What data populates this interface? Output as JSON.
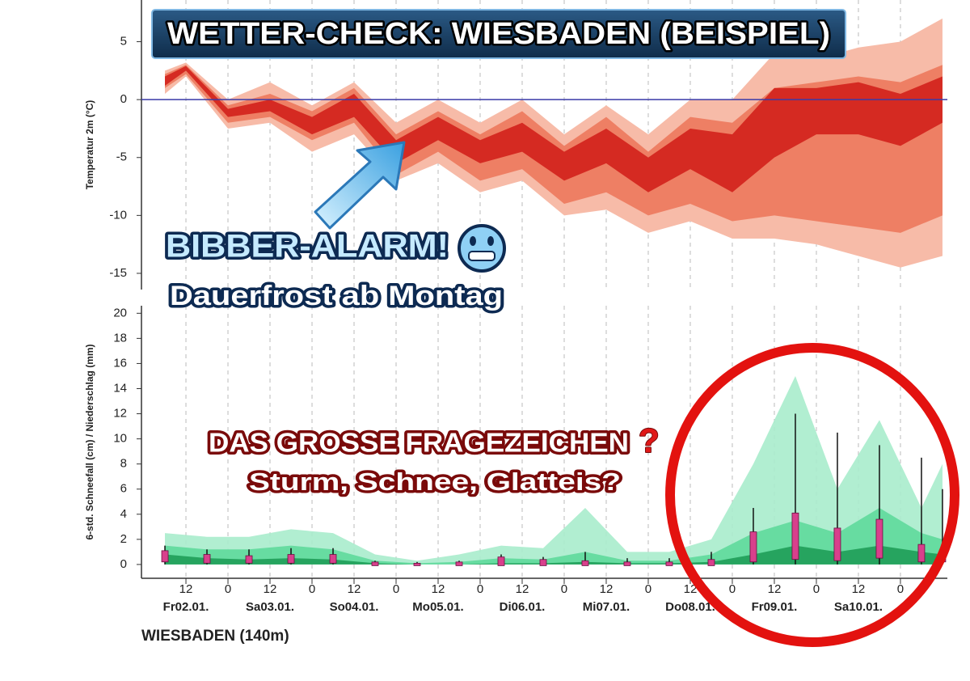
{
  "header": {
    "title": "WETTER-CHECK: WIESBADEN (BEISPIEL)"
  },
  "annotations": {
    "alarm": "BIBBER-ALARM!",
    "alarm_sub": "Dauerfrost ab Montag",
    "question": "DAS GROSSE FRAGEZEICHEN",
    "question_mark": "?",
    "question_sub": "Sturm, Schnee, Glatteis?"
  },
  "location": "WIESBADEN (140m)",
  "chart_data": [
    {
      "type": "band",
      "y_label": "Temperatur 2m (°C)",
      "x": [
        6,
        12,
        24,
        36,
        48,
        60,
        72,
        84,
        96,
        108,
        120,
        132,
        144,
        156,
        168,
        180,
        192,
        204,
        216,
        228
      ],
      "xlim": [
        -0.7,
        229.4
      ],
      "ylim": [
        -16.4,
        8.6
      ],
      "yticks": [
        5,
        0,
        -5,
        -10,
        -15
      ],
      "reference_line": 0,
      "reference_color": "#3a3aa8",
      "series": [
        {
          "color": "#f7bba8",
          "low": [
            0.5,
            2,
            -2.5,
            -2,
            -4.5,
            -3,
            -7,
            -5.5,
            -8,
            -7,
            -10,
            -9.5,
            -11.5,
            -10.5,
            -12,
            -12,
            -12.5,
            -13.5,
            -14.5,
            -13.5
          ],
          "high": [
            2.5,
            3.2,
            0,
            1.5,
            -0.5,
            1.5,
            -2,
            0,
            -2,
            0,
            -3,
            -0.5,
            -3,
            0,
            0,
            4,
            3.5,
            4.5,
            5,
            7
          ]
        },
        {
          "color": "#ee7f64",
          "low": [
            1,
            2.2,
            -2,
            -1.5,
            -3.5,
            -2,
            -6.5,
            -4.5,
            -7,
            -6,
            -9,
            -8,
            -10,
            -9,
            -10.5,
            -10,
            -10.5,
            -11,
            -11.5,
            -10
          ],
          "high": [
            2.2,
            3,
            -0.5,
            0.5,
            -1,
            1,
            -3,
            -1,
            -3,
            -1,
            -4,
            -1.5,
            -4.5,
            -1.5,
            -2,
            1,
            1.5,
            2,
            1.5,
            3
          ]
        },
        {
          "color": "#d52a22",
          "low": [
            1.2,
            2.5,
            -1.5,
            -1,
            -3,
            -1.5,
            -5.5,
            -3.5,
            -5.5,
            -4.5,
            -7,
            -5.5,
            -8,
            -6,
            -8,
            -5,
            -3,
            -3,
            -4,
            -2
          ],
          "high": [
            2,
            2.9,
            -0.8,
            0,
            -1.5,
            0.5,
            -3.5,
            -1.5,
            -3.5,
            -2,
            -4.5,
            -2.5,
            -5,
            -2.5,
            -3,
            1,
            1,
            1.5,
            0.5,
            2
          ]
        }
      ]
    },
    {
      "type": "area-box",
      "y_label": "6-std. Schneefall (cm) / Niederschlag (mm)",
      "x": [
        6,
        18,
        30,
        42,
        54,
        66,
        78,
        90,
        102,
        114,
        126,
        138,
        150,
        162,
        174,
        186,
        198,
        210,
        222,
        228
      ],
      "xlim": [
        -0.7,
        229.4
      ],
      "ylim": [
        -1.1,
        20.6
      ],
      "yticks": [
        0,
        2,
        4,
        6,
        8,
        10,
        12,
        14,
        16,
        18,
        20
      ],
      "grid": "x",
      "xticks": [
        {
          "value": 12,
          "label": "12"
        },
        {
          "value": 24,
          "label": "0"
        },
        {
          "value": 36,
          "label": "12"
        },
        {
          "value": 48,
          "label": "0"
        },
        {
          "value": 60,
          "label": "12"
        },
        {
          "value": 72,
          "label": "0"
        },
        {
          "value": 84,
          "label": "12"
        },
        {
          "value": 96,
          "label": "0"
        },
        {
          "value": 108,
          "label": "12"
        },
        {
          "value": 120,
          "label": "0"
        },
        {
          "value": 132,
          "label": "12"
        },
        {
          "value": 144,
          "label": "0"
        },
        {
          "value": 156,
          "label": "12"
        },
        {
          "value": 168,
          "label": "0"
        },
        {
          "value": 180,
          "label": "12"
        },
        {
          "value": 192,
          "label": "0"
        },
        {
          "value": 204,
          "label": "12"
        },
        {
          "value": 216,
          "label": "0"
        }
      ],
      "x_day_labels": [
        {
          "value": 12,
          "label": "Fr02.01."
        },
        {
          "value": 36,
          "label": "Sa03.01."
        },
        {
          "value": 60,
          "label": "So04.01."
        },
        {
          "value": 84,
          "label": "Mo05.01."
        },
        {
          "value": 108,
          "label": "Di06.01."
        },
        {
          "value": 132,
          "label": "Mi07.01."
        },
        {
          "value": 156,
          "label": "Do08.01."
        },
        {
          "value": 180,
          "label": "Fr09.01."
        },
        {
          "value": 204,
          "label": "Sa10.01."
        }
      ],
      "series": [
        {
          "color": "#a8eccc",
          "values": [
            2.5,
            2.2,
            2.2,
            2.8,
            2.5,
            0.8,
            0.3,
            0.8,
            1.5,
            1.3,
            4.5,
            1,
            1,
            2,
            8,
            15,
            6,
            11.5,
            4.5,
            8
          ]
        },
        {
          "color": "#5fd99b",
          "values": [
            1.5,
            1.2,
            1.2,
            1.5,
            1.2,
            0.3,
            0.1,
            0.2,
            0.5,
            0.4,
            1,
            0.3,
            0.3,
            0.8,
            2.5,
            3.5,
            2.5,
            4.5,
            2.5,
            2
          ]
        },
        {
          "color": "#1f9d58",
          "values": [
            0.8,
            0.5,
            0.4,
            0.5,
            0.4,
            0.1,
            0,
            0,
            0.1,
            0.1,
            0.2,
            0.1,
            0.1,
            0.2,
            0.8,
            1.5,
            1,
            1.5,
            1,
            0.8
          ]
        }
      ],
      "box_color": "#d8408c",
      "whisker": [
        1.5,
        1.2,
        1.2,
        1.3,
        1.3,
        0.3,
        0.2,
        0.3,
        0.8,
        0.6,
        1,
        0.5,
        0.5,
        1,
        4.5,
        12,
        10.5,
        9.5,
        8.5,
        6
      ],
      "box_high": [
        1,
        0.7,
        0.6,
        0.7,
        0.7,
        0.1,
        0,
        0.1,
        0.5,
        0.3,
        0.2,
        0.1,
        0.1,
        0.3,
        2.5,
        4,
        2.8,
        3.5,
        1.5,
        1
      ],
      "box_low": [
        0.3,
        0.2,
        0.2,
        0.2,
        0.2,
        0,
        0,
        0,
        0,
        0,
        0,
        0,
        0,
        0,
        0.3,
        0.5,
        0.4,
        0.6,
        0.3,
        0.3
      ]
    }
  ]
}
